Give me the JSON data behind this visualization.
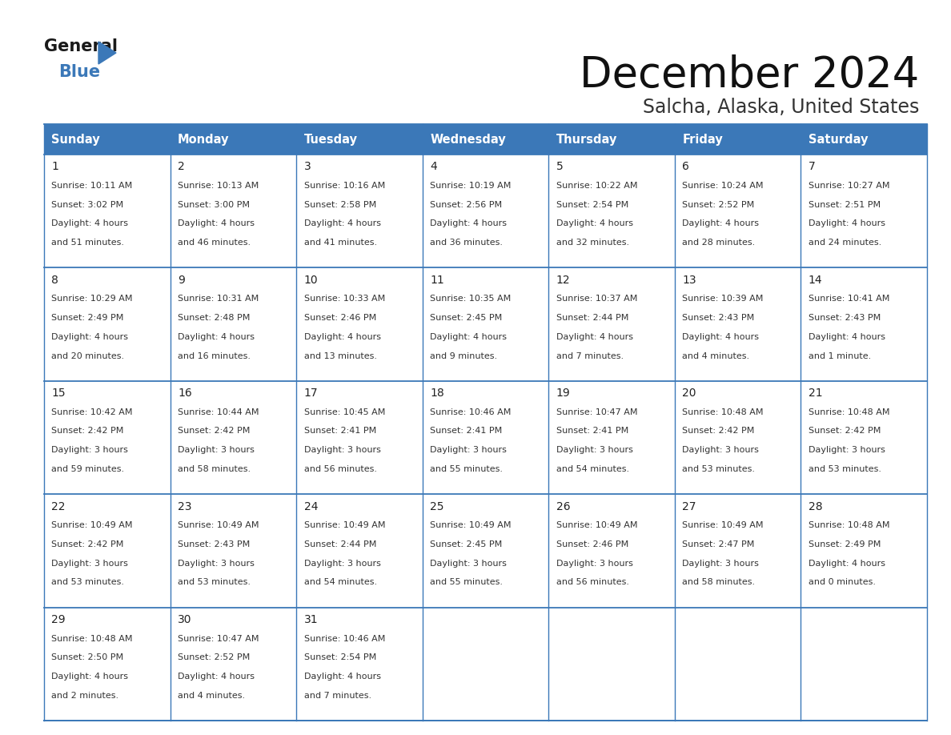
{
  "title": "December 2024",
  "subtitle": "Salcha, Alaska, United States",
  "header_color": "#3b78b8",
  "header_text_color": "#ffffff",
  "border_color": "#3b78b8",
  "title_color": "#111111",
  "subtitle_color": "#333333",
  "cell_text_color": "#333333",
  "day_num_color": "#222222",
  "days_of_week": [
    "Sunday",
    "Monday",
    "Tuesday",
    "Wednesday",
    "Thursday",
    "Friday",
    "Saturday"
  ],
  "calendar_data": [
    [
      {
        "day": 1,
        "sunrise": "10:11 AM",
        "sunset": "3:02 PM",
        "daylight_line1": "4 hours",
        "daylight_line2": "and 51 minutes."
      },
      {
        "day": 2,
        "sunrise": "10:13 AM",
        "sunset": "3:00 PM",
        "daylight_line1": "4 hours",
        "daylight_line2": "and 46 minutes."
      },
      {
        "day": 3,
        "sunrise": "10:16 AM",
        "sunset": "2:58 PM",
        "daylight_line1": "4 hours",
        "daylight_line2": "and 41 minutes."
      },
      {
        "day": 4,
        "sunrise": "10:19 AM",
        "sunset": "2:56 PM",
        "daylight_line1": "4 hours",
        "daylight_line2": "and 36 minutes."
      },
      {
        "day": 5,
        "sunrise": "10:22 AM",
        "sunset": "2:54 PM",
        "daylight_line1": "4 hours",
        "daylight_line2": "and 32 minutes."
      },
      {
        "day": 6,
        "sunrise": "10:24 AM",
        "sunset": "2:52 PM",
        "daylight_line1": "4 hours",
        "daylight_line2": "and 28 minutes."
      },
      {
        "day": 7,
        "sunrise": "10:27 AM",
        "sunset": "2:51 PM",
        "daylight_line1": "4 hours",
        "daylight_line2": "and 24 minutes."
      }
    ],
    [
      {
        "day": 8,
        "sunrise": "10:29 AM",
        "sunset": "2:49 PM",
        "daylight_line1": "4 hours",
        "daylight_line2": "and 20 minutes."
      },
      {
        "day": 9,
        "sunrise": "10:31 AM",
        "sunset": "2:48 PM",
        "daylight_line1": "4 hours",
        "daylight_line2": "and 16 minutes."
      },
      {
        "day": 10,
        "sunrise": "10:33 AM",
        "sunset": "2:46 PM",
        "daylight_line1": "4 hours",
        "daylight_line2": "and 13 minutes."
      },
      {
        "day": 11,
        "sunrise": "10:35 AM",
        "sunset": "2:45 PM",
        "daylight_line1": "4 hours",
        "daylight_line2": "and 9 minutes."
      },
      {
        "day": 12,
        "sunrise": "10:37 AM",
        "sunset": "2:44 PM",
        "daylight_line1": "4 hours",
        "daylight_line2": "and 7 minutes."
      },
      {
        "day": 13,
        "sunrise": "10:39 AM",
        "sunset": "2:43 PM",
        "daylight_line1": "4 hours",
        "daylight_line2": "and 4 minutes."
      },
      {
        "day": 14,
        "sunrise": "10:41 AM",
        "sunset": "2:43 PM",
        "daylight_line1": "4 hours",
        "daylight_line2": "and 1 minute."
      }
    ],
    [
      {
        "day": 15,
        "sunrise": "10:42 AM",
        "sunset": "2:42 PM",
        "daylight_line1": "3 hours",
        "daylight_line2": "and 59 minutes."
      },
      {
        "day": 16,
        "sunrise": "10:44 AM",
        "sunset": "2:42 PM",
        "daylight_line1": "3 hours",
        "daylight_line2": "and 58 minutes."
      },
      {
        "day": 17,
        "sunrise": "10:45 AM",
        "sunset": "2:41 PM",
        "daylight_line1": "3 hours",
        "daylight_line2": "and 56 minutes."
      },
      {
        "day": 18,
        "sunrise": "10:46 AM",
        "sunset": "2:41 PM",
        "daylight_line1": "3 hours",
        "daylight_line2": "and 55 minutes."
      },
      {
        "day": 19,
        "sunrise": "10:47 AM",
        "sunset": "2:41 PM",
        "daylight_line1": "3 hours",
        "daylight_line2": "and 54 minutes."
      },
      {
        "day": 20,
        "sunrise": "10:48 AM",
        "sunset": "2:42 PM",
        "daylight_line1": "3 hours",
        "daylight_line2": "and 53 minutes."
      },
      {
        "day": 21,
        "sunrise": "10:48 AM",
        "sunset": "2:42 PM",
        "daylight_line1": "3 hours",
        "daylight_line2": "and 53 minutes."
      }
    ],
    [
      {
        "day": 22,
        "sunrise": "10:49 AM",
        "sunset": "2:42 PM",
        "daylight_line1": "3 hours",
        "daylight_line2": "and 53 minutes."
      },
      {
        "day": 23,
        "sunrise": "10:49 AM",
        "sunset": "2:43 PM",
        "daylight_line1": "3 hours",
        "daylight_line2": "and 53 minutes."
      },
      {
        "day": 24,
        "sunrise": "10:49 AM",
        "sunset": "2:44 PM",
        "daylight_line1": "3 hours",
        "daylight_line2": "and 54 minutes."
      },
      {
        "day": 25,
        "sunrise": "10:49 AM",
        "sunset": "2:45 PM",
        "daylight_line1": "3 hours",
        "daylight_line2": "and 55 minutes."
      },
      {
        "day": 26,
        "sunrise": "10:49 AM",
        "sunset": "2:46 PM",
        "daylight_line1": "3 hours",
        "daylight_line2": "and 56 minutes."
      },
      {
        "day": 27,
        "sunrise": "10:49 AM",
        "sunset": "2:47 PM",
        "daylight_line1": "3 hours",
        "daylight_line2": "and 58 minutes."
      },
      {
        "day": 28,
        "sunrise": "10:48 AM",
        "sunset": "2:49 PM",
        "daylight_line1": "4 hours",
        "daylight_line2": "and 0 minutes."
      }
    ],
    [
      {
        "day": 29,
        "sunrise": "10:48 AM",
        "sunset": "2:50 PM",
        "daylight_line1": "4 hours",
        "daylight_line2": "and 2 minutes."
      },
      {
        "day": 30,
        "sunrise": "10:47 AM",
        "sunset": "2:52 PM",
        "daylight_line1": "4 hours",
        "daylight_line2": "and 4 minutes."
      },
      {
        "day": 31,
        "sunrise": "10:46 AM",
        "sunset": "2:54 PM",
        "daylight_line1": "4 hours",
        "daylight_line2": "and 7 minutes."
      },
      null,
      null,
      null,
      null
    ]
  ]
}
